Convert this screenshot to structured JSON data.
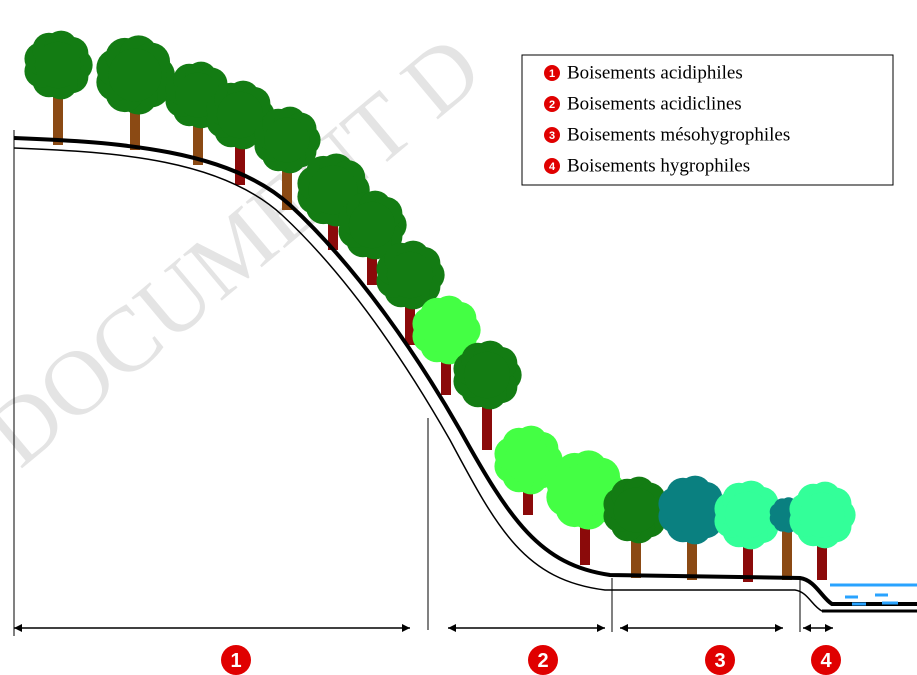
{
  "watermark": "DOCUMENT D",
  "legend": [
    {
      "marker": "1",
      "label": "Boisements acidiphiles"
    },
    {
      "marker": "2",
      "label": "Boisements acidiclines"
    },
    {
      "marker": "3",
      "label": "Boisements mésohygrophiles"
    },
    {
      "marker": "4",
      "label": "Boisements hygrophiles"
    }
  ],
  "zones": [
    "1",
    "2",
    "3",
    "4"
  ]
}
